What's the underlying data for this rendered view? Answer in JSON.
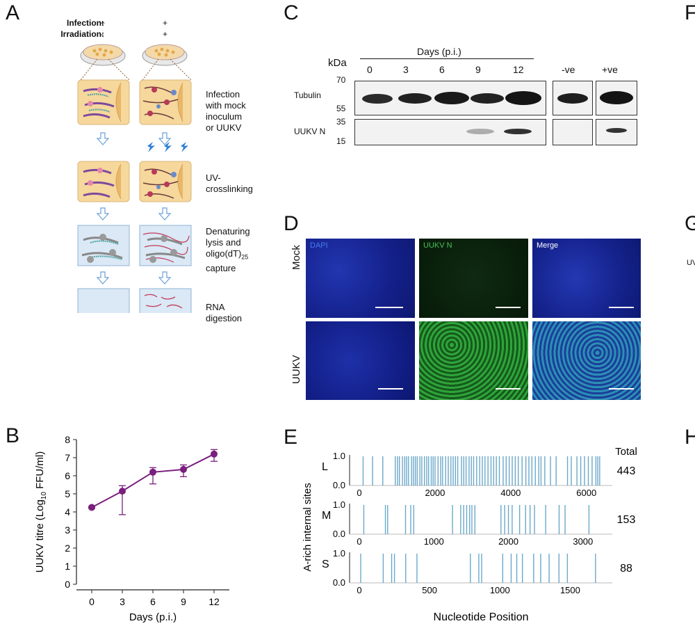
{
  "panel_letters": {
    "a": "A",
    "b": "B",
    "c": "C",
    "d": "D",
    "e": "E",
    "f": "F",
    "g": "G",
    "h": "H"
  },
  "panelA": {
    "infection_label": "Infection:",
    "irradiation_label": "Irradiation:",
    "col1_infection": "+",
    "col1_irradiation": "-",
    "col2_infection": "+",
    "col2_irradiation": "+",
    "steps": [
      "Infection\nwith mock\ninoculum\nor UUKV",
      "UV-\ncrosslinking",
      "Denaturing\nlysis and\noligo(dT)25\ncapture",
      "RNA\ndigestion"
    ],
    "step1": [
      "Infection",
      "with mock",
      "inoculum",
      "or UUKV"
    ],
    "step2": [
      "UV-",
      "crosslinking"
    ],
    "step3_l1": "Denaturing",
    "step3_l2": "lysis and",
    "step3_l3_main": "oligo(dT)",
    "step3_l3_sub": "25",
    "step3_l4": "capture",
    "step4": [
      "RNA",
      "digestion"
    ]
  },
  "panelC": {
    "kda_label": "kDa",
    "days_label": "Days (p.i.)",
    "lanes": [
      "0",
      "3",
      "6",
      "9",
      "12"
    ],
    "controls": [
      "-ve",
      "+ve"
    ],
    "markers_top": [
      "70",
      "55"
    ],
    "markers_bottom": [
      "35",
      "15"
    ],
    "row1_label": "Tubulin",
    "row2_label": "UUKV N",
    "uukvn_intensity": [
      0,
      0,
      0,
      0.25,
      0.9
    ],
    "control_uukvn_intensity": [
      0,
      0.85
    ]
  },
  "panelD": {
    "row_labels": [
      "Mock",
      "UUKV"
    ],
    "col_labels": [
      "DAPI",
      "UUKV N",
      "Merge"
    ],
    "colors": {
      "dapi": "#1a2a9a",
      "uukv": "#1f8a2a",
      "merge_mock": "#1c2f9c",
      "merge_uukv": "#1e6fa0"
    }
  },
  "panelG_fragment": "UV",
  "chart_data": [
    {
      "type": "line",
      "title": "",
      "xlabel": "Days (p.i.)",
      "ylabel_main": "UUKV titre (Log",
      "ylabel_sub": "10",
      "ylabel_tail": " FFU/ml)",
      "x": [
        0,
        3,
        6,
        9,
        12
      ],
      "values": [
        4.25,
        5.15,
        6.2,
        6.35,
        7.2
      ],
      "err_low": [
        4.2,
        3.85,
        5.55,
        5.95,
        6.8
      ],
      "err_high": [
        4.3,
        5.45,
        6.45,
        6.6,
        7.45
      ],
      "xticks": [
        "0",
        "3",
        "6",
        "9",
        "12"
      ],
      "yticks": [
        "0",
        "1",
        "2",
        "3",
        "4",
        "5",
        "6",
        "7",
        "8"
      ],
      "ylim": [
        0,
        8
      ],
      "color": "#7a1f7e"
    },
    {
      "type": "bar",
      "xlabel": "Nucleotide Position",
      "ylabel": "A-rich internal sites",
      "total_label": "Total",
      "color": "#6aa8c9",
      "segments": [
        {
          "name": "L",
          "total": "443",
          "xmax": 6500,
          "xticks": [
            "0",
            "2000",
            "4000",
            "6000"
          ],
          "xtick_values": [
            0,
            2000,
            4000,
            6000
          ],
          "yticks": [
            "1.0",
            "0.0"
          ],
          "positions": [
            100,
            350,
            620,
            950,
            1010,
            1060,
            1140,
            1200,
            1250,
            1300,
            1380,
            1430,
            1480,
            1530,
            1600,
            1650,
            1720,
            1780,
            1830,
            1900,
            1950,
            2000,
            2080,
            2150,
            2200,
            2280,
            2350,
            2420,
            2480,
            2540,
            2600,
            2700,
            2760,
            2820,
            2900,
            2960,
            3020,
            3100,
            3180,
            3250,
            3320,
            3400,
            3480,
            3550,
            3620,
            3700,
            3800,
            3880,
            3960,
            4040,
            4120,
            4200,
            4300,
            4400,
            4480,
            4560,
            4650,
            4740,
            4800,
            4900,
            5050,
            5200,
            5500,
            5600,
            5750,
            5850,
            5950,
            6050,
            6150,
            6250,
            6300,
            6350
          ]
        },
        {
          "name": "M",
          "total": "153",
          "xmax": 3300,
          "xticks": [
            "0",
            "1000",
            "2000",
            "3000"
          ],
          "xtick_values": [
            0,
            1000,
            2000,
            3000
          ],
          "yticks": [
            "1.0",
            "0.0"
          ],
          "positions": [
            60,
            350,
            380,
            620,
            690,
            730,
            1250,
            1360,
            1400,
            1440,
            1480,
            1510,
            1550,
            1900,
            1950,
            2000,
            2050,
            2150,
            2230,
            2290,
            2350,
            2500,
            2680,
            2760,
            3080
          ]
        },
        {
          "name": "S",
          "total": "88",
          "xmax": 1750,
          "xticks": [
            "0",
            "500",
            "1000",
            "1500"
          ],
          "xtick_values": [
            0,
            500,
            1000,
            1500
          ],
          "yticks": [
            "1.0",
            "0.0"
          ],
          "positions": [
            10,
            170,
            230,
            250,
            330,
            410,
            790,
            850,
            870,
            1020,
            1080,
            1120,
            1160,
            1240,
            1290,
            1350,
            1420,
            1480,
            1680
          ]
        }
      ]
    }
  ]
}
